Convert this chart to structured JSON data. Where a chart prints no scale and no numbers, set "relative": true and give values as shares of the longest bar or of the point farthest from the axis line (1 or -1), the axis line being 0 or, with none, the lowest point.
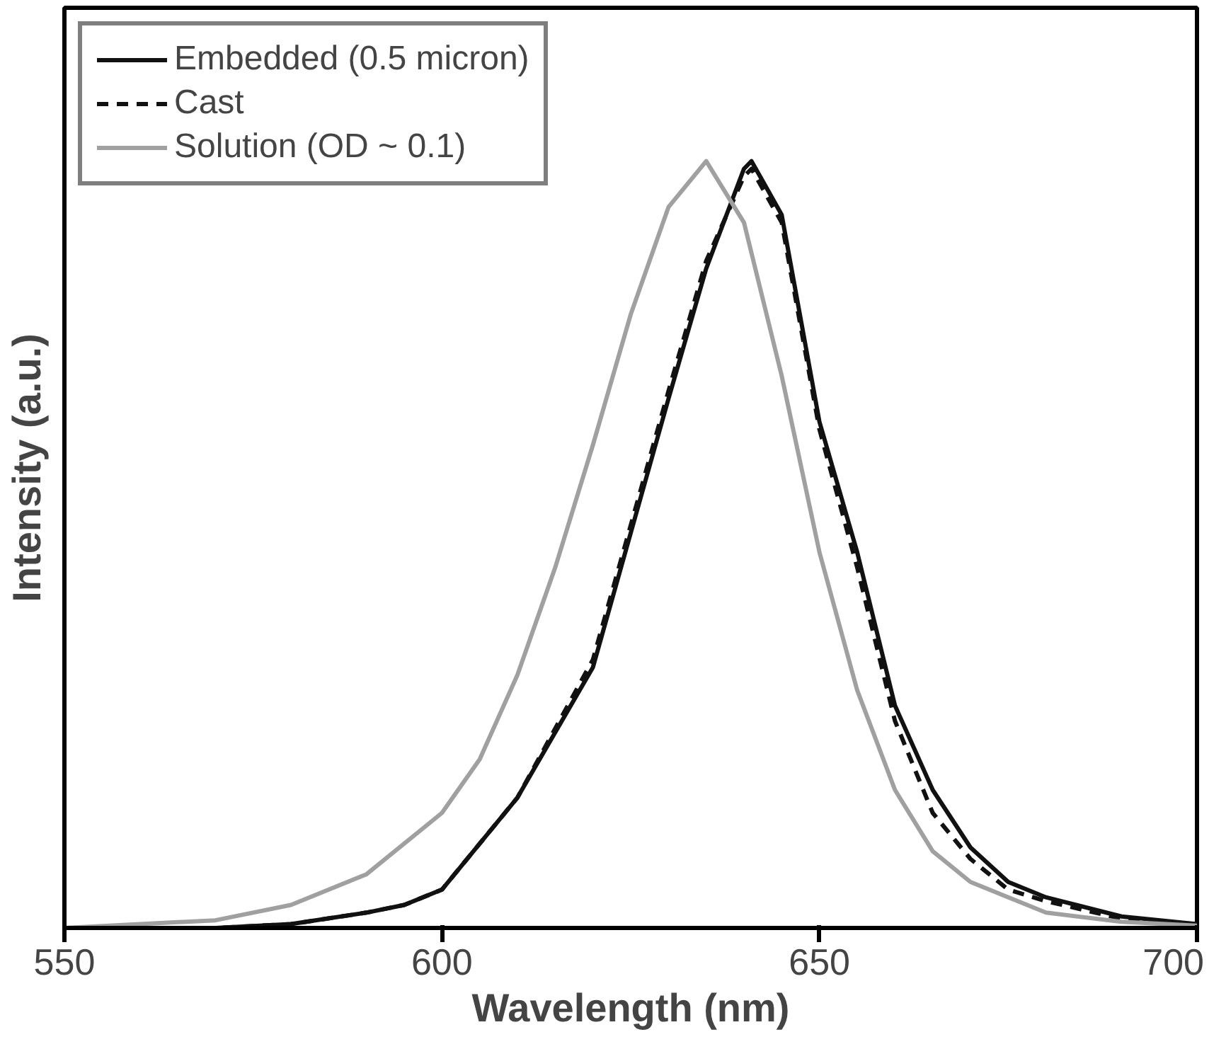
{
  "chart_data": {
    "type": "line",
    "xlabel": "Wavelength (nm)",
    "ylabel": "Intensity (a.u.)",
    "relative": true,
    "xlim": [
      550,
      700
    ],
    "xticks": [
      550,
      600,
      650,
      700
    ],
    "grid": false,
    "legend": "top left",
    "marker": "none",
    "series": [
      {
        "name": "Embedded (0.5 micron)",
        "color": "#111111",
        "line_style": "solid",
        "x": [
          550,
          570,
          580,
          590,
          595,
          600,
          610,
          620,
          630,
          635,
          640,
          641,
          645,
          650,
          655,
          660,
          665,
          670,
          675,
          680,
          690,
          700
        ],
        "values": [
          0,
          0,
          0.005,
          0.02,
          0.03,
          0.05,
          0.17,
          0.34,
          0.69,
          0.86,
          0.99,
          1.0,
          0.93,
          0.66,
          0.49,
          0.29,
          0.18,
          0.105,
          0.06,
          0.04,
          0.015,
          0.005
        ]
      },
      {
        "name": "Cast",
        "color": "#111111",
        "line_style": "dashed",
        "x": [
          550,
          570,
          580,
          590,
          595,
          600,
          610,
          620,
          630,
          635,
          640,
          641,
          645,
          650,
          655,
          660,
          665,
          670,
          675,
          680,
          690,
          700
        ],
        "values": [
          0,
          0,
          0.005,
          0.02,
          0.03,
          0.05,
          0.17,
          0.35,
          0.7,
          0.87,
          0.98,
          0.99,
          0.92,
          0.65,
          0.47,
          0.27,
          0.15,
          0.09,
          0.05,
          0.035,
          0.012,
          0.005
        ]
      },
      {
        "name": "Solution (OD ~ 0.1)",
        "color": "#a0a0a0",
        "line_style": "solid",
        "x": [
          550,
          570,
          580,
          590,
          600,
          605,
          610,
          615,
          620,
          625,
          630,
          635,
          640,
          645,
          650,
          655,
          660,
          665,
          670,
          680,
          690,
          700
        ],
        "values": [
          0,
          0.01,
          0.03,
          0.07,
          0.15,
          0.22,
          0.33,
          0.47,
          0.63,
          0.8,
          0.94,
          1.0,
          0.92,
          0.72,
          0.49,
          0.31,
          0.18,
          0.1,
          0.06,
          0.02,
          0.008,
          0.003
        ]
      }
    ]
  }
}
